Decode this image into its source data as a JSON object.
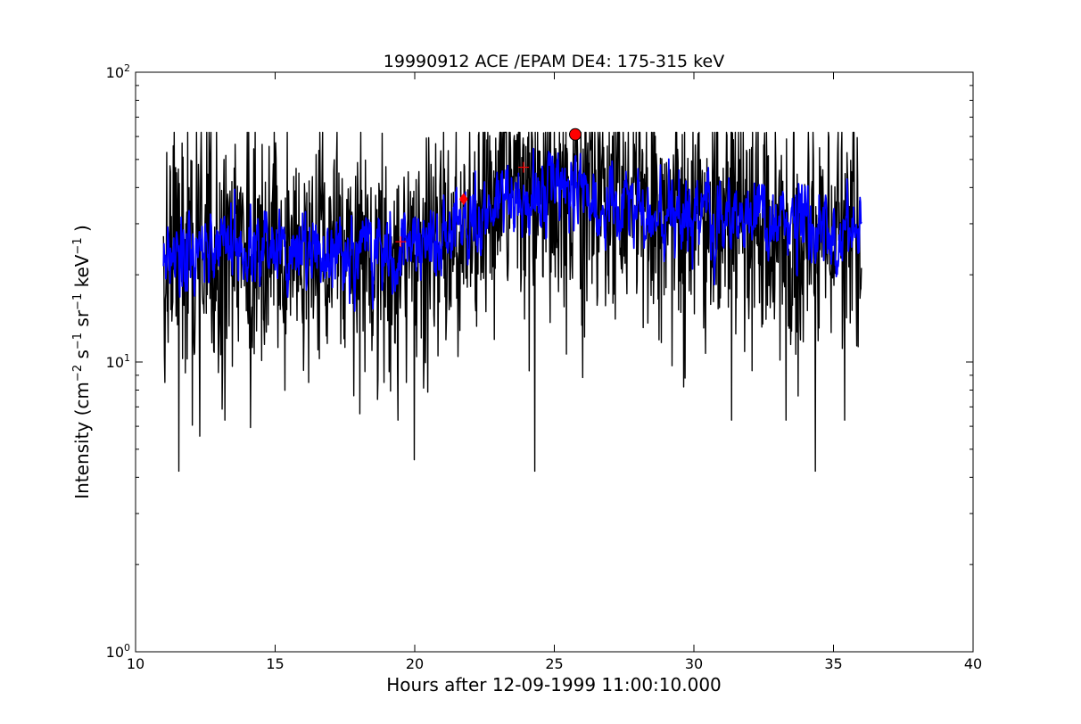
{
  "chart_data": {
    "type": "line",
    "title": "19990912 ACE /EPAM DE4: 175-315 keV",
    "xlabel": "Hours after 12-09-1999 11:00:10.000",
    "ylabel": {
      "prefix": "Intensity (cm",
      "sup1": "−2",
      "mid1": " s",
      "sup2": "−1",
      "mid2": " sr",
      "sup3": "−1",
      "mid3": " keV",
      "sup4": "−1",
      "suffix": " )"
    },
    "xlim": [
      10,
      40
    ],
    "ylim": [
      1,
      100
    ],
    "yscale": "log",
    "grid": false,
    "x_ticks": [
      10,
      15,
      20,
      25,
      30,
      35,
      40
    ],
    "x_tick_labels": [
      "10",
      "15",
      "20",
      "25",
      "30",
      "35",
      "40"
    ],
    "y_ticks": [
      1,
      10,
      100
    ],
    "y_tick_labels": [
      {
        "base": "10",
        "exp": "0"
      },
      {
        "base": "10",
        "exp": "1"
      },
      {
        "base": "10",
        "exp": "2"
      }
    ],
    "series": [
      {
        "color": "#000000",
        "description_type": "raw-noisy",
        "x_range": [
          11.0,
          36.0
        ],
        "envelope": [
          [
            11,
            24
          ],
          [
            14,
            25
          ],
          [
            17,
            24
          ],
          [
            19,
            23
          ],
          [
            21,
            27
          ],
          [
            22,
            31
          ],
          [
            23,
            35
          ],
          [
            24,
            38
          ],
          [
            25,
            40
          ],
          [
            26,
            38
          ],
          [
            27,
            35
          ],
          [
            30,
            32
          ],
          [
            33,
            30
          ],
          [
            36,
            28
          ]
        ],
        "noise_log_sigma": 0.22,
        "spikes": [
          [
            11.55,
            4.2
          ],
          [
            13.2,
            6.3
          ],
          [
            19.4,
            6.3
          ],
          [
            31.35,
            6.3
          ],
          [
            33.3,
            6.3
          ],
          [
            34.35,
            4.2
          ],
          [
            35.4,
            6.3
          ],
          [
            11.05,
            8.5
          ],
          [
            16.2,
            8.5
          ],
          [
            18.9,
            8.5
          ],
          [
            19.7,
            8.5
          ]
        ]
      },
      {
        "color": "#0000ff",
        "description_type": "smoothed",
        "x_range": [
          11.0,
          36.0
        ],
        "envelope": [
          [
            11,
            24
          ],
          [
            14,
            25
          ],
          [
            17,
            24
          ],
          [
            19,
            23
          ],
          [
            21,
            27
          ],
          [
            22,
            31
          ],
          [
            23,
            35
          ],
          [
            24,
            38
          ],
          [
            25,
            40
          ],
          [
            26,
            38
          ],
          [
            27,
            35
          ],
          [
            30,
            32
          ],
          [
            33,
            30
          ],
          [
            36,
            28
          ]
        ],
        "noise_log_sigma": 0.09
      }
    ],
    "markers": [
      {
        "shape": "circle",
        "color": "#ff0000",
        "x": 25.75,
        "y": 61
      },
      {
        "shape": "diamond",
        "color": "#ff0000",
        "x": 21.75,
        "y": 36.5
      },
      {
        "shape": "plus",
        "color": "#ff0000",
        "x": 23.9,
        "y": 47
      },
      {
        "shape": "plus",
        "color": "#ff0000",
        "x": 19.5,
        "y": 26
      }
    ]
  }
}
